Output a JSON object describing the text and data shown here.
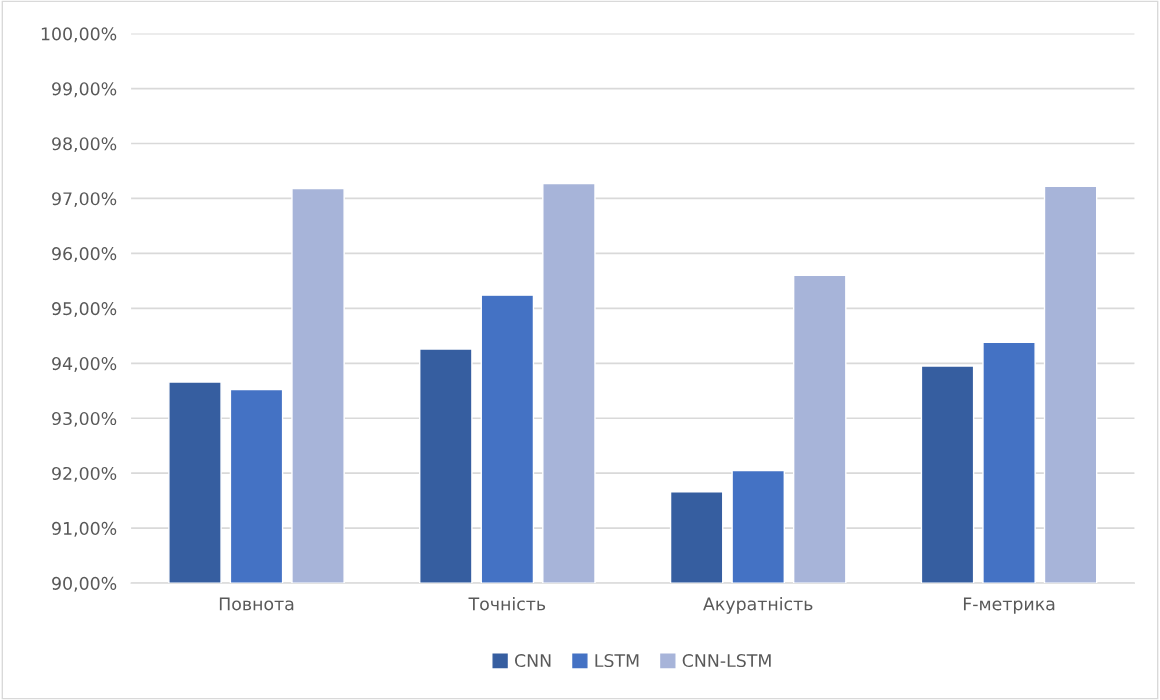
{
  "chart_data": {
    "type": "bar",
    "categories": [
      "Повнота",
      "Точність",
      "Акуратність",
      "F-метрика"
    ],
    "series": [
      {
        "name": "CNN",
        "color": "#365ea0",
        "values": [
          93.66,
          94.26,
          91.66,
          93.95
        ]
      },
      {
        "name": "LSTM",
        "color": "#4472c4",
        "values": [
          93.52,
          95.24,
          92.05,
          94.38
        ]
      },
      {
        "name": "CNN-LSTM",
        "color": "#a7b4d9",
        "values": [
          97.18,
          97.27,
          95.6,
          97.22
        ]
      }
    ],
    "ylim": [
      90,
      100
    ],
    "yticks": [
      {
        "value": 90,
        "label": "90,00%"
      },
      {
        "value": 91,
        "label": "91,00%"
      },
      {
        "value": 92,
        "label": "92,00%"
      },
      {
        "value": 93,
        "label": "93,00%"
      },
      {
        "value": 94,
        "label": "94,00%"
      },
      {
        "value": 95,
        "label": "95,00%"
      },
      {
        "value": 96,
        "label": "96,00%"
      },
      {
        "value": 97,
        "label": "97,00%"
      },
      {
        "value": 98,
        "label": "98,00%"
      },
      {
        "value": 99,
        "label": "99,00%"
      },
      {
        "value": 100,
        "label": "100,00%"
      }
    ],
    "grid": "y",
    "legend": "bottom"
  }
}
